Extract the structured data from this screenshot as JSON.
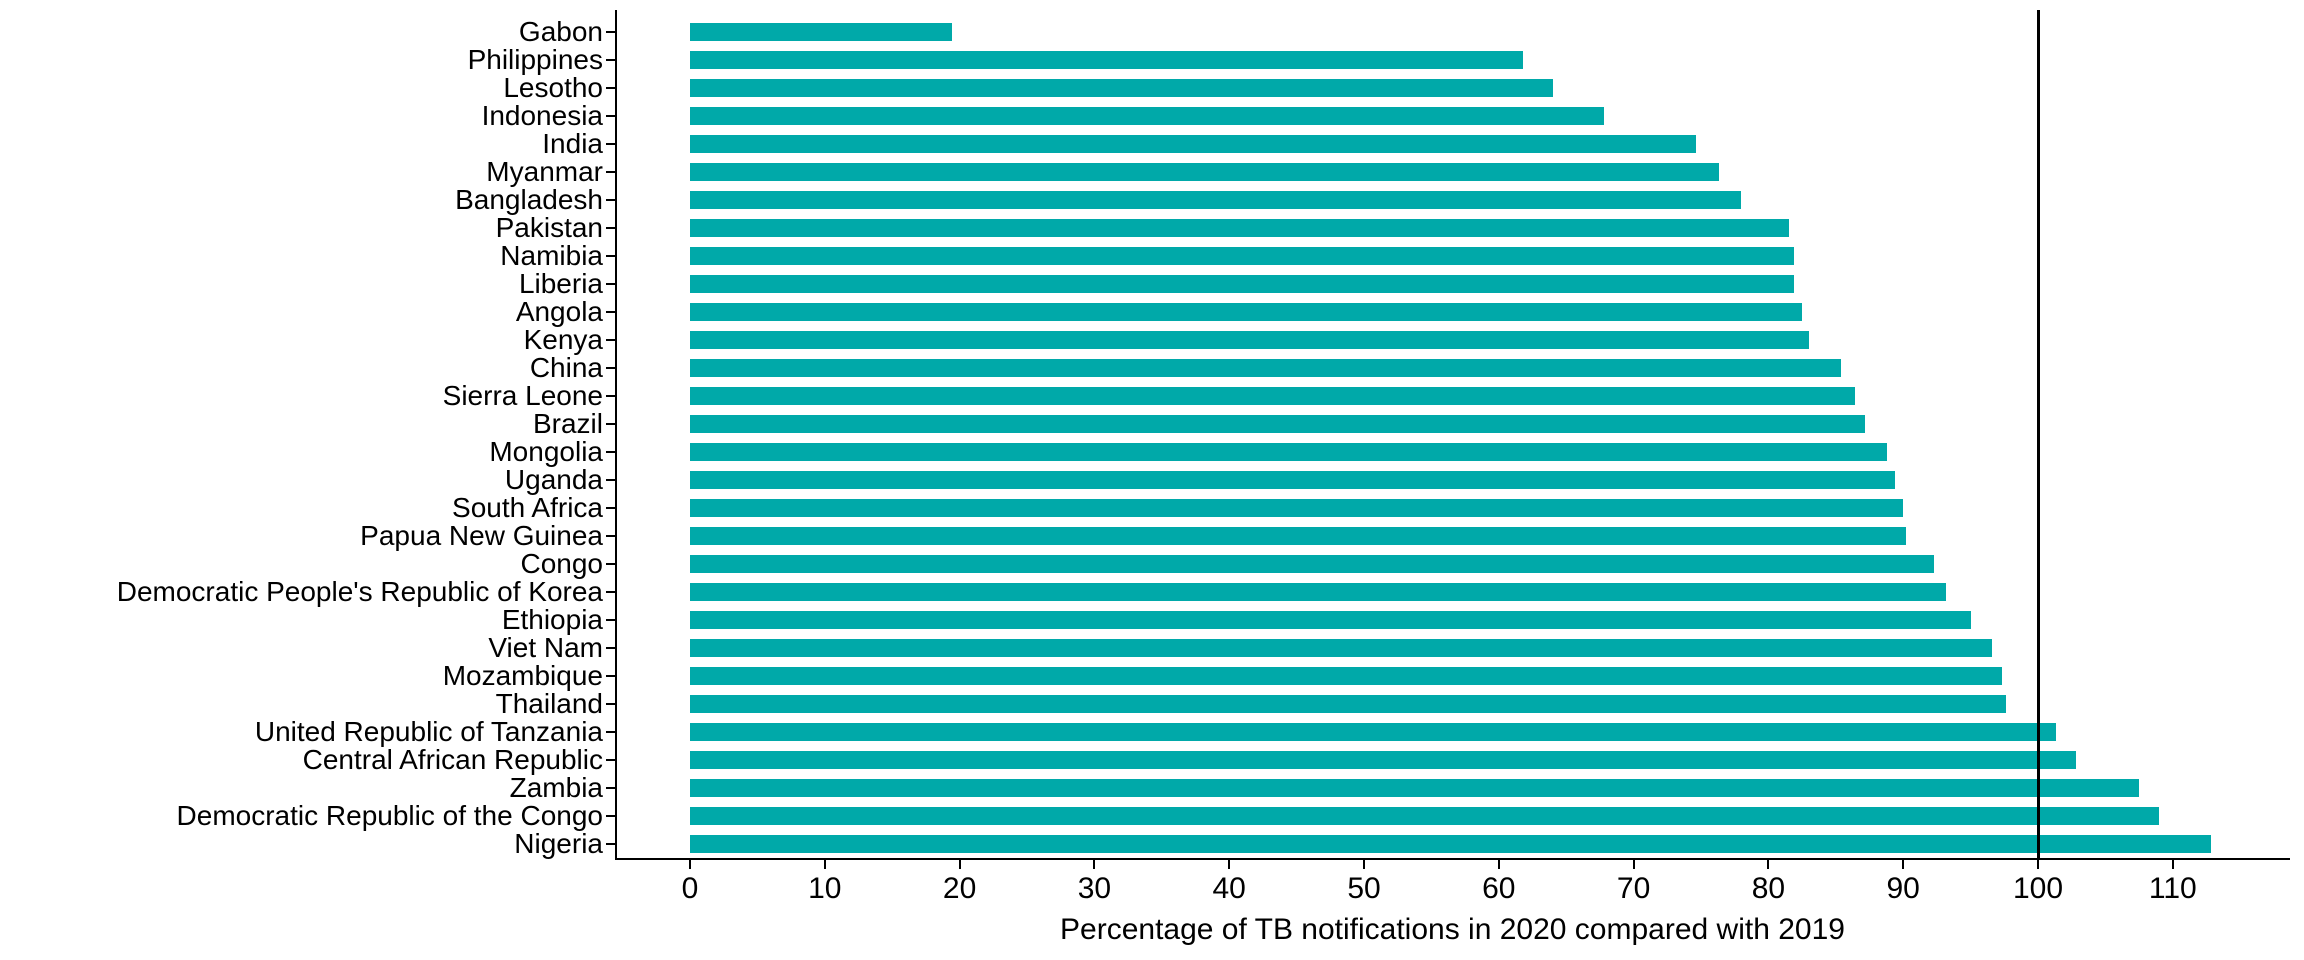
{
  "chart_data": {
    "type": "bar",
    "orientation": "horizontal",
    "title": "",
    "xlabel": "Percentage of TB notifications in 2020 compared with 2019",
    "ylabel": "",
    "xlim": [
      0,
      117
    ],
    "x_ticks": [
      0,
      10,
      20,
      30,
      40,
      50,
      60,
      70,
      80,
      90,
      100,
      110
    ],
    "reference_line_x": 100,
    "bar_color": "#00a9a9",
    "axis_color": "#000000",
    "grid": false,
    "legend": false,
    "categories": [
      "Gabon",
      "Philippines",
      "Lesotho",
      "Indonesia",
      "India",
      "Myanmar",
      "Bangladesh",
      "Pakistan",
      "Namibia",
      "Liberia",
      "Angola",
      "Kenya",
      "China",
      "Sierra Leone",
      "Brazil",
      "Mongolia",
      "Uganda",
      "South Africa",
      "Papua New Guinea",
      "Congo",
      "Democratic People's Republic of Korea",
      "Ethiopia",
      "Viet Nam",
      "Mozambique",
      "Thailand",
      "United Republic of Tanzania",
      "Central African Republic",
      "Zambia",
      "Democratic Republic of the Congo",
      "Nigeria"
    ],
    "values": [
      19.4,
      61.8,
      64.0,
      67.8,
      74.6,
      76.3,
      78.0,
      81.5,
      81.9,
      81.9,
      82.5,
      83.0,
      85.4,
      86.4,
      87.2,
      88.8,
      89.4,
      90.0,
      90.2,
      92.3,
      93.2,
      95.0,
      96.6,
      97.3,
      97.6,
      101.3,
      102.8,
      107.5,
      109.0,
      112.8
    ]
  }
}
